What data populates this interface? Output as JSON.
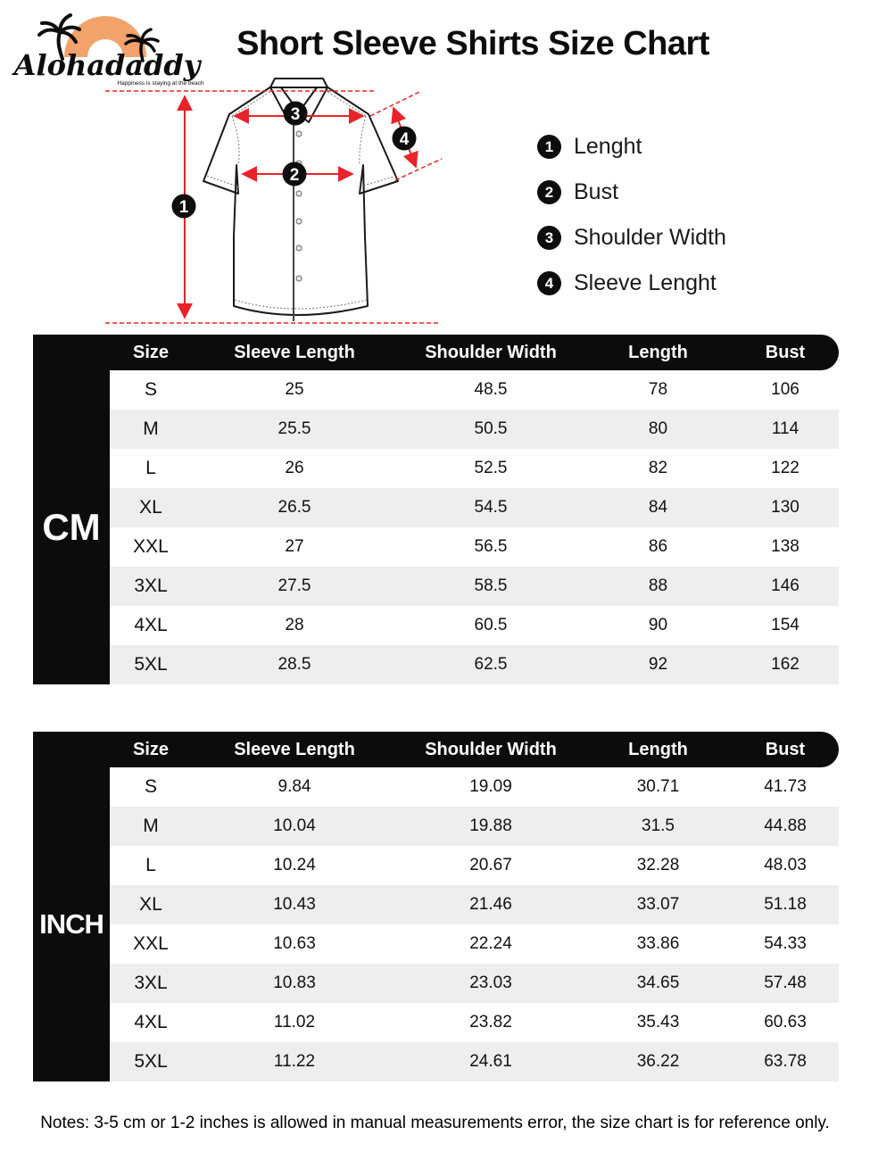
{
  "brand": {
    "name": "Alohadaddy",
    "tagline": "Happiness is staying at the beach"
  },
  "title": "Short Sleeve Shirts Size Chart",
  "diagram": {
    "legend": [
      {
        "num": "1",
        "label": "Lenght"
      },
      {
        "num": "2",
        "label": "Bust"
      },
      {
        "num": "3",
        "label": "Shoulder Width"
      },
      {
        "num": "4",
        "label": "Sleeve Lenght"
      }
    ]
  },
  "tables": [
    {
      "unit": "CM",
      "columns": [
        "Size",
        "Sleeve Length",
        "Shoulder Width",
        "Length",
        "Bust"
      ],
      "rows": [
        [
          "S",
          "25",
          "48.5",
          "78",
          "106"
        ],
        [
          "M",
          "25.5",
          "50.5",
          "80",
          "114"
        ],
        [
          "L",
          "26",
          "52.5",
          "82",
          "122"
        ],
        [
          "XL",
          "26.5",
          "54.5",
          "84",
          "130"
        ],
        [
          "XXL",
          "27",
          "56.5",
          "86",
          "138"
        ],
        [
          "3XL",
          "27.5",
          "58.5",
          "88",
          "146"
        ],
        [
          "4XL",
          "28",
          "60.5",
          "90",
          "154"
        ],
        [
          "5XL",
          "28.5",
          "62.5",
          "92",
          "162"
        ]
      ]
    },
    {
      "unit": "INCH",
      "columns": [
        "Size",
        "Sleeve Length",
        "Shoulder Width",
        "Length",
        "Bust"
      ],
      "rows": [
        [
          "S",
          "9.84",
          "19.09",
          "30.71",
          "41.73"
        ],
        [
          "M",
          "10.04",
          "19.88",
          "31.5",
          "44.88"
        ],
        [
          "L",
          "10.24",
          "20.67",
          "32.28",
          "48.03"
        ],
        [
          "XL",
          "10.43",
          "21.46",
          "33.07",
          "51.18"
        ],
        [
          "XXL",
          "10.63",
          "22.24",
          "33.86",
          "54.33"
        ],
        [
          "3XL",
          "10.83",
          "23.03",
          "34.65",
          "57.48"
        ],
        [
          "4XL",
          "11.02",
          "23.82",
          "35.43",
          "60.63"
        ],
        [
          "5XL",
          "11.22",
          "24.61",
          "36.22",
          "63.78"
        ]
      ]
    }
  ],
  "note": "Notes: 3-5 cm or 1-2 inches is allowed in manual measurements error, the size chart is for reference only.",
  "colors": {
    "accent_red": "#e8232a",
    "header_black": "#0c0c0c",
    "row_alt_gray": "#eeeeee",
    "logo_orange": "#f2a36b"
  }
}
